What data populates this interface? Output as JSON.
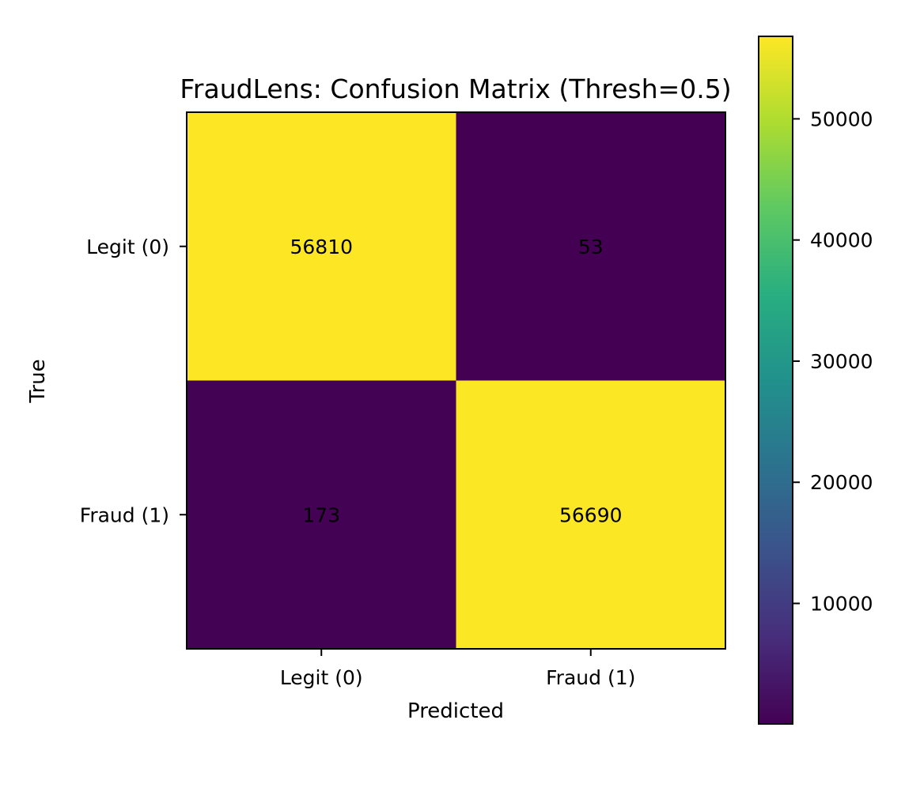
{
  "chart_data": {
    "type": "heatmap",
    "title": "FraudLens: Confusion Matrix (Thresh=0.5)",
    "xlabel": "Predicted",
    "ylabel": "True",
    "x_categories": [
      "Legit (0)",
      "Fraud (1)"
    ],
    "y_categories": [
      "Legit (0)",
      "Fraud (1)"
    ],
    "values": [
      [
        56810,
        53
      ],
      [
        173,
        56690
      ]
    ],
    "colormap": "viridis",
    "colorbar": {
      "range": [
        53,
        56810
      ],
      "ticks": [
        10000,
        20000,
        30000,
        40000,
        50000
      ]
    },
    "grid": false
  }
}
